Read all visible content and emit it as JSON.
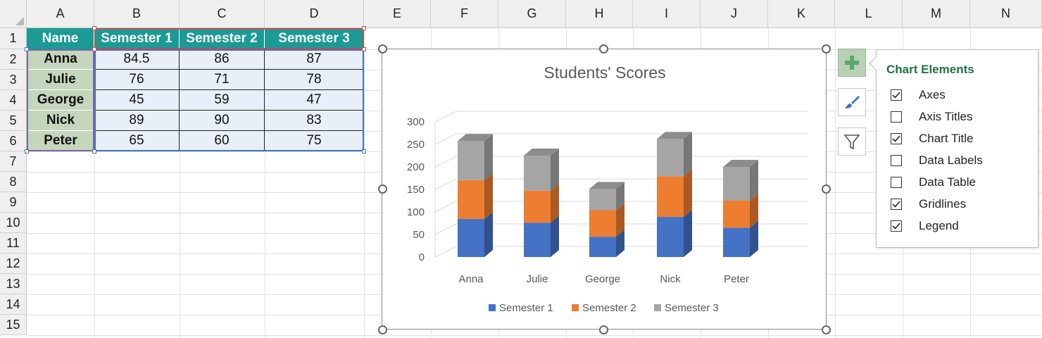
{
  "columns": [
    "A",
    "B",
    "C",
    "D",
    "E",
    "F",
    "G",
    "H",
    "I",
    "J",
    "K",
    "L",
    "M",
    "N"
  ],
  "rows": [
    "1",
    "2",
    "3",
    "4",
    "5",
    "6",
    "7",
    "8",
    "9",
    "10",
    "11",
    "12",
    "13",
    "14",
    "15"
  ],
  "table": {
    "headers": [
      "Name",
      "Semester 1",
      "Semester 2",
      "Semester 3"
    ],
    "rows": [
      {
        "name": "Anna",
        "s1": "84.5",
        "s2": "86",
        "s3": "87"
      },
      {
        "name": "Julie",
        "s1": "76",
        "s2": "71",
        "s3": "78"
      },
      {
        "name": "George",
        "s1": "45",
        "s2": "59",
        "s3": "47"
      },
      {
        "name": "Nick",
        "s1": "89",
        "s2": "90",
        "s3": "83"
      },
      {
        "name": "Peter",
        "s1": "65",
        "s2": "60",
        "s3": "75"
      }
    ]
  },
  "chart_data": {
    "type": "bar",
    "stacked": true,
    "three_d": true,
    "title": "Students' Scores",
    "categories": [
      "Anna",
      "Julie",
      "George",
      "Nick",
      "Peter"
    ],
    "series": [
      {
        "name": "Semester 1",
        "values": [
          84.5,
          76,
          45,
          89,
          65
        ],
        "color": "#4472c4"
      },
      {
        "name": "Semester 2",
        "values": [
          86,
          71,
          59,
          90,
          60
        ],
        "color": "#ed7d31"
      },
      {
        "name": "Semester 3",
        "values": [
          87,
          78,
          47,
          83,
          75
        ],
        "color": "#a5a5a5"
      }
    ],
    "yticks": [
      "0",
      "50",
      "100",
      "150",
      "200",
      "250",
      "300"
    ],
    "ylim": [
      0,
      300
    ],
    "grid": true,
    "legend": "bottom"
  },
  "chart_elements": {
    "title": "Chart Elements",
    "options": [
      {
        "label": "Axes",
        "checked": true
      },
      {
        "label": "Axis Titles",
        "checked": false
      },
      {
        "label": "Chart Title",
        "checked": true
      },
      {
        "label": "Data Labels",
        "checked": false
      },
      {
        "label": "Data Table",
        "checked": false
      },
      {
        "label": "Gridlines",
        "checked": true
      },
      {
        "label": "Legend",
        "checked": true
      }
    ]
  },
  "side_buttons": [
    "plus-icon",
    "brush-icon",
    "filter-icon"
  ],
  "colors": {
    "header": "#1b9a96",
    "name_fill": "#c4d6bc",
    "value_fill": "#e8eff9",
    "accent": "#217346"
  }
}
